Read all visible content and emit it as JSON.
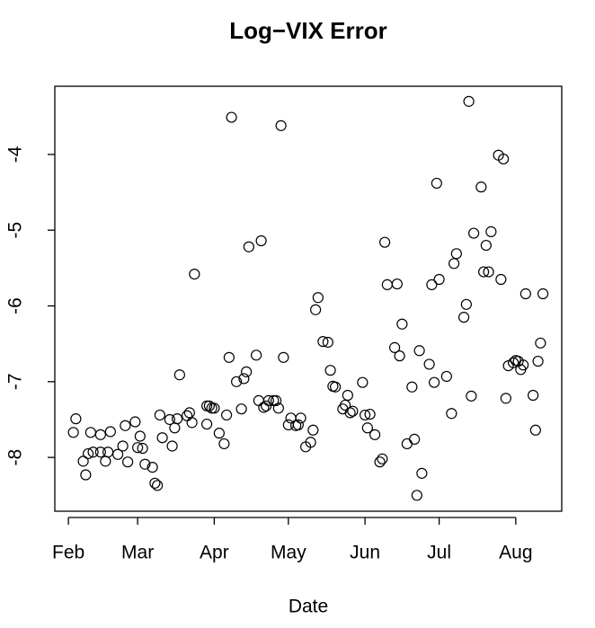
{
  "chart_data": {
    "type": "scatter",
    "title": "Log−VIX Error",
    "xlabel": "Date",
    "x": [
      34,
      35,
      38,
      39,
      40,
      41,
      42,
      45,
      45,
      47,
      48,
      49,
      52,
      54,
      55,
      56,
      59,
      60,
      61,
      62,
      63,
      66,
      67,
      68,
      69,
      70,
      73,
      74,
      75,
      76,
      77,
      80,
      81,
      82,
      83,
      88,
      88,
      89,
      90,
      91,
      93,
      95,
      96,
      97,
      98,
      100,
      102,
      103,
      104,
      105,
      108,
      109,
      110,
      111,
      112,
      113,
      115,
      116,
      117,
      118,
      119,
      121,
      122,
      124,
      125,
      126,
      128,
      130,
      131,
      132,
      133,
      135,
      137,
      138,
      139,
      140,
      143,
      144,
      145,
      146,
      147,
      151,
      152,
      153,
      154,
      156,
      158,
      159,
      160,
      161,
      164,
      165,
      166,
      167,
      169,
      171,
      172,
      173,
      174,
      175,
      178,
      179,
      180,
      181,
      182,
      185,
      187,
      188,
      189,
      192,
      193,
      194,
      195,
      196,
      199,
      200,
      201,
      202,
      203,
      206,
      207,
      208,
      209,
      210,
      212,
      213,
      214,
      215,
      216,
      217,
      220,
      221,
      222,
      223,
      224
    ],
    "y": [
      -7.67,
      -7.49,
      -8.05,
      -8.23,
      -7.95,
      -7.67,
      -7.93,
      -7.7,
      -7.93,
      -8.05,
      -7.93,
      -7.66,
      -7.96,
      -7.85,
      -7.58,
      -8.06,
      -7.53,
      -7.87,
      -7.72,
      -7.88,
      -8.09,
      -8.13,
      -8.34,
      -8.37,
      -7.44,
      -7.74,
      -7.5,
      -7.85,
      -7.61,
      -7.49,
      -6.91,
      -7.45,
      -7.41,
      -7.54,
      -5.58,
      -7.32,
      -7.56,
      -7.32,
      -7.35,
      -7.35,
      -7.68,
      -7.82,
      -7.44,
      -6.68,
      -3.51,
      -7.0,
      -7.36,
      -6.96,
      -6.87,
      -5.22,
      -6.65,
      -7.25,
      -5.14,
      -7.34,
      -7.32,
      -7.25,
      -7.25,
      -7.25,
      -7.35,
      -3.62,
      -6.68,
      -7.57,
      -7.48,
      -7.58,
      -7.57,
      -7.48,
      -7.86,
      -7.8,
      -7.64,
      -6.05,
      -5.89,
      -6.47,
      -6.48,
      -6.85,
      -7.06,
      -7.07,
      -7.36,
      -7.31,
      -7.18,
      -7.41,
      -7.39,
      -7.01,
      -7.44,
      -7.61,
      -7.43,
      -7.7,
      -8.06,
      -8.02,
      -5.16,
      -5.72,
      -6.55,
      -5.71,
      -6.66,
      -6.24,
      -7.82,
      -7.07,
      -7.76,
      -8.5,
      -6.59,
      -8.21,
      -6.77,
      -5.72,
      -7.01,
      -4.38,
      -5.65,
      -6.93,
      -7.42,
      -5.44,
      -5.31,
      -6.15,
      -5.98,
      -3.3,
      -7.19,
      -5.04,
      -4.43,
      -5.55,
      -5.2,
      -5.55,
      -5.02,
      -4.01,
      -5.65,
      -4.06,
      -7.22,
      -6.79,
      -6.75,
      -6.72,
      -6.73,
      -6.84,
      -6.78,
      -5.84,
      -7.18,
      -7.64,
      -6.73,
      -6.49,
      -5.84
    ],
    "xlim": [
      26.5,
      231.6
    ],
    "xticks": [
      {
        "value": 32,
        "label": "Feb"
      },
      {
        "value": 60,
        "label": "Mar"
      },
      {
        "value": 91,
        "label": "Apr"
      },
      {
        "value": 121,
        "label": "May"
      },
      {
        "value": 152,
        "label": "Jun"
      },
      {
        "value": 182,
        "label": "Jul"
      },
      {
        "value": 213,
        "label": "Aug"
      }
    ],
    "ylim": [
      -8.71,
      -3.1
    ],
    "yticks": [
      -8,
      -7,
      -6,
      -5,
      -4
    ],
    "color": "#000000"
  }
}
